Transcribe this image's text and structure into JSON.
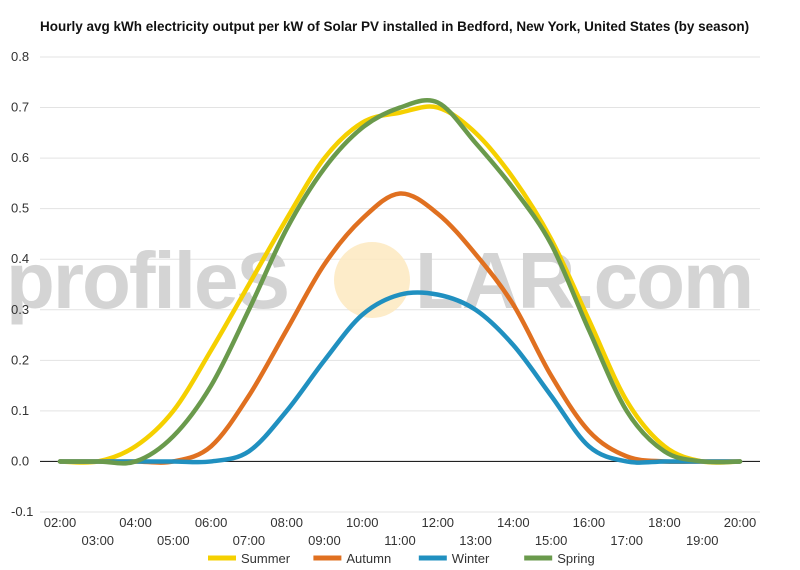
{
  "chart_data": {
    "type": "line",
    "title": "Hourly avg kWh electricity output per kW of Solar PV installed in Bedford, New York, United States (by season)",
    "xlabel": "",
    "ylabel": "",
    "ylim": [
      -0.1,
      0.8
    ],
    "yticks": [
      "0.8",
      "0.7",
      "0.6",
      "0.5",
      "0.4",
      "0.3",
      "0.2",
      "0.1",
      "0.0",
      "-0.1"
    ],
    "ytick_values": [
      0.8,
      0.7,
      0.6,
      0.5,
      0.4,
      0.3,
      0.2,
      0.1,
      0.0,
      -0.1
    ],
    "x": [
      "02:00",
      "03:00",
      "04:00",
      "05:00",
      "06:00",
      "07:00",
      "08:00",
      "09:00",
      "10:00",
      "11:00",
      "12:00",
      "13:00",
      "14:00",
      "15:00",
      "16:00",
      "17:00",
      "18:00",
      "19:00",
      "20:00"
    ],
    "grid": true,
    "legend_position": "bottom",
    "series": [
      {
        "name": "Summer",
        "color": "#f5d000",
        "values": [
          0,
          0,
          0.03,
          0.1,
          0.22,
          0.35,
          0.48,
          0.6,
          0.67,
          0.69,
          0.7,
          0.65,
          0.56,
          0.44,
          0.28,
          0.12,
          0.03,
          0.0,
          0
        ]
      },
      {
        "name": "Autumn",
        "color": "#e07020",
        "values": [
          0,
          0,
          0,
          0,
          0.03,
          0.13,
          0.26,
          0.39,
          0.48,
          0.53,
          0.49,
          0.41,
          0.31,
          0.17,
          0.06,
          0.01,
          0,
          0,
          0
        ]
      },
      {
        "name": "Winter",
        "color": "#2090c0",
        "values": [
          0,
          0,
          0,
          0,
          0,
          0.02,
          0.1,
          0.2,
          0.29,
          0.33,
          0.33,
          0.3,
          0.23,
          0.13,
          0.03,
          0,
          0,
          0,
          0
        ]
      },
      {
        "name": "Spring",
        "color": "#6a9a4c",
        "values": [
          0,
          0,
          0,
          0.05,
          0.15,
          0.3,
          0.46,
          0.58,
          0.66,
          0.7,
          0.71,
          0.63,
          0.54,
          0.43,
          0.26,
          0.1,
          0.02,
          0,
          0
        ]
      }
    ]
  },
  "watermark": {
    "left": "profileS",
    "right": "LAR.com"
  }
}
